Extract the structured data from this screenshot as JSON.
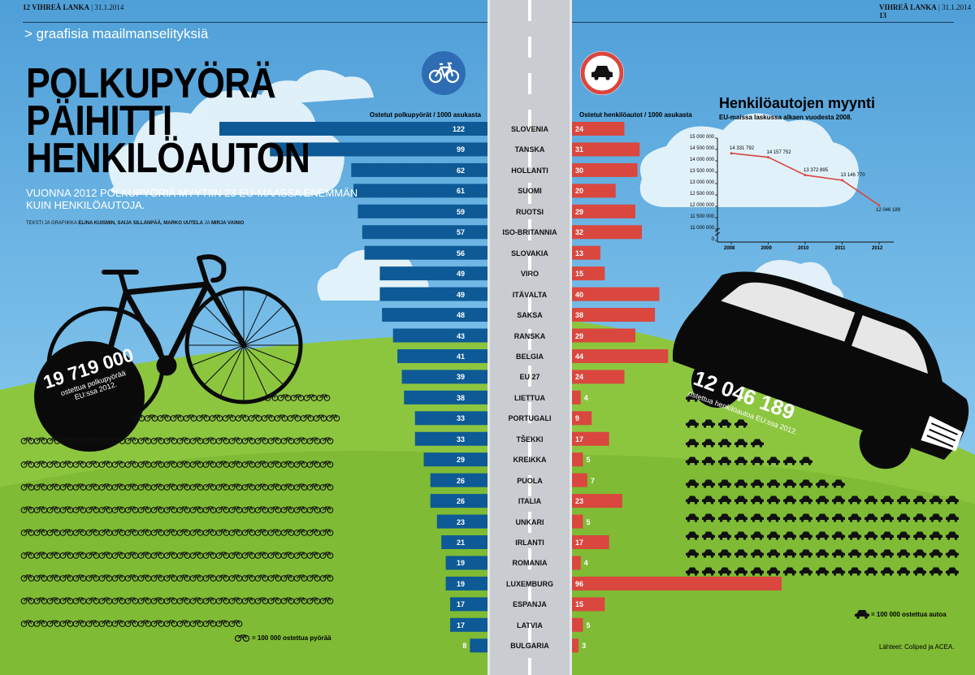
{
  "header": {
    "left_page": "12",
    "left_pub": "VIHREÄ LANKA",
    "left_date": "31.1.2014",
    "right_pub": "VIHREÄ LANKA",
    "right_date": "31.1.2014",
    "right_page": "13"
  },
  "section": "> graafisia maailmanselityksiä",
  "title_lines": [
    "POLKUPYÖRÄ",
    "PÄIHITTI",
    "HENKILÖAUTON"
  ],
  "subtitle": "VUONNA 2012 POLKUPYÖRIÄ MYYTIIN 23 EU-MAASSA ENEMMÄN KUIN HENKILÖAUTOJA.",
  "credits": {
    "prefix": "TEKSTI JA GRAFIIKKA",
    "names1": "ELINA KUISMIN, SAIJA SILLANPÄÄ, MARKO UUTELA",
    "conj": "JA",
    "names2": "MIRJA VAINIO"
  },
  "colors": {
    "bike_bar": "#0d5a96",
    "car_bar": "#d9473f",
    "road": "#c9ccd0",
    "grass": "#8cc63f",
    "grass_dark": "#6fae2c",
    "icon_blue": "#2e6db3"
  },
  "icons": {
    "bike_badge": "bicycle-icon",
    "car_badge": "no-cars-sign-icon"
  },
  "chart_data": [
    {
      "type": "bar",
      "orientation": "horizontal-diverging",
      "categories": [
        "SLOVENIA",
        "TANSKA",
        "HOLLANTI",
        "SUOMI",
        "RUOTSI",
        "ISO-BRITANNIA",
        "SLOVAKIA",
        "VIRO",
        "ITÄVALTA",
        "SAKSA",
        "RANSKA",
        "BELGIA",
        "EU 27",
        "LIETTUA",
        "PORTUGALI",
        "TŠEKKI",
        "KREIKKA",
        "PUOLA",
        "ITALIA",
        "UNKARI",
        "IRLANTI",
        "ROMANIA",
        "LUXEMBURG",
        "ESPANJA",
        "LATVIA",
        "BULGARIA"
      ],
      "series": [
        {
          "name": "Ostetut polkupyörät / 1000 asukasta",
          "side": "left",
          "values": [
            122,
            99,
            62,
            61,
            59,
            57,
            56,
            49,
            49,
            48,
            43,
            41,
            39,
            38,
            33,
            33,
            29,
            26,
            26,
            23,
            21,
            19,
            19,
            17,
            17,
            8
          ]
        },
        {
          "name": "Ostetut henkilöautot / 1000 asukasta",
          "side": "right",
          "values": [
            24,
            31,
            30,
            20,
            29,
            32,
            13,
            15,
            40,
            38,
            29,
            44,
            24,
            4,
            9,
            17,
            5,
            7,
            23,
            5,
            17,
            4,
            96,
            15,
            5,
            3
          ]
        }
      ]
    },
    {
      "type": "line",
      "title": "Henkilöautojen myynti",
      "subtitle": "EU-maissa laskussa alkaen vuodesta 2008.",
      "x": [
        "2008",
        "2009",
        "2010",
        "2011",
        "2012"
      ],
      "values": [
        14331792,
        14157752,
        13372895,
        13146770,
        12046189
      ],
      "value_labels": [
        "14 331 792",
        "14 157 752",
        "13 372 895",
        "13 146 770",
        "12 046 189"
      ],
      "yticks": [
        "15 000 000",
        "14 500 000",
        "14 000 000",
        "13 500 000",
        "13 000 000",
        "12 500 000",
        "12 000 000",
        "11 500 000",
        "11 000 000",
        "0"
      ],
      "ylim": [
        11000000,
        15000000
      ],
      "axis_break": true,
      "grid": false
    }
  ],
  "bike_total": {
    "number": "19 719 000",
    "caption1": "ostettua polkupyörää",
    "caption2": "EU:ssa 2012."
  },
  "car_total": {
    "number": "12 046 189",
    "caption": "ostettua henkilöautoa EU:ssa 2012."
  },
  "bike_pictogram": {
    "count": 197,
    "unit": 100000,
    "legend": "= 100 000 ostettua pyörää"
  },
  "car_pictogram": {
    "count": 120,
    "unit": 100000,
    "legend": "= 100 000 ostettua autoa"
  },
  "source": "Lähteet: Coliped ja ACEA."
}
